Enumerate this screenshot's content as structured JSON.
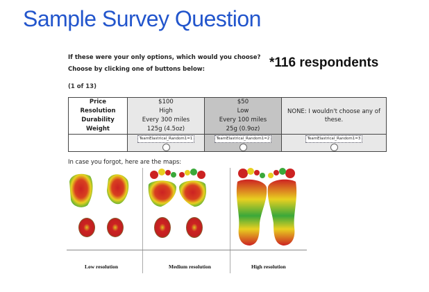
{
  "slide": {
    "title": "Sample Survey Question",
    "respondents": "*116 respondents"
  },
  "survey": {
    "question": "If these were your only options, which would you choose?",
    "instruction": "Choose by clicking one of buttons below:",
    "pager": "(1 of 13)",
    "attributes": [
      "Price",
      "Resolution",
      "Durability",
      "Weight"
    ],
    "options": [
      {
        "values": [
          "$100",
          "High",
          "Every 300 miles",
          "125g (4.5oz)"
        ],
        "button_label": "TeamElastrical_Random1=1"
      },
      {
        "values": [
          "$50",
          "Low",
          "Every 100 miles",
          "25g (0.9oz)"
        ],
        "button_label": "TeamElastrical_Random1=2"
      }
    ],
    "none_option": {
      "text": "NONE: I wouldn't choose any of these.",
      "button_label": "TeamElastrical_Random1=3"
    },
    "maps_intro": "In case you forgot, here are the maps:"
  },
  "maps": {
    "captions": [
      "Low resolution",
      "Medium resolution",
      "High resolution"
    ]
  },
  "colors": {
    "title": "#2255cc",
    "option_a_bg": "#e8e8e8",
    "option_b_bg": "#c4c4c4",
    "heat_red": "#cc2222",
    "heat_yellow": "#e8d020",
    "heat_green": "#3aa83a"
  }
}
